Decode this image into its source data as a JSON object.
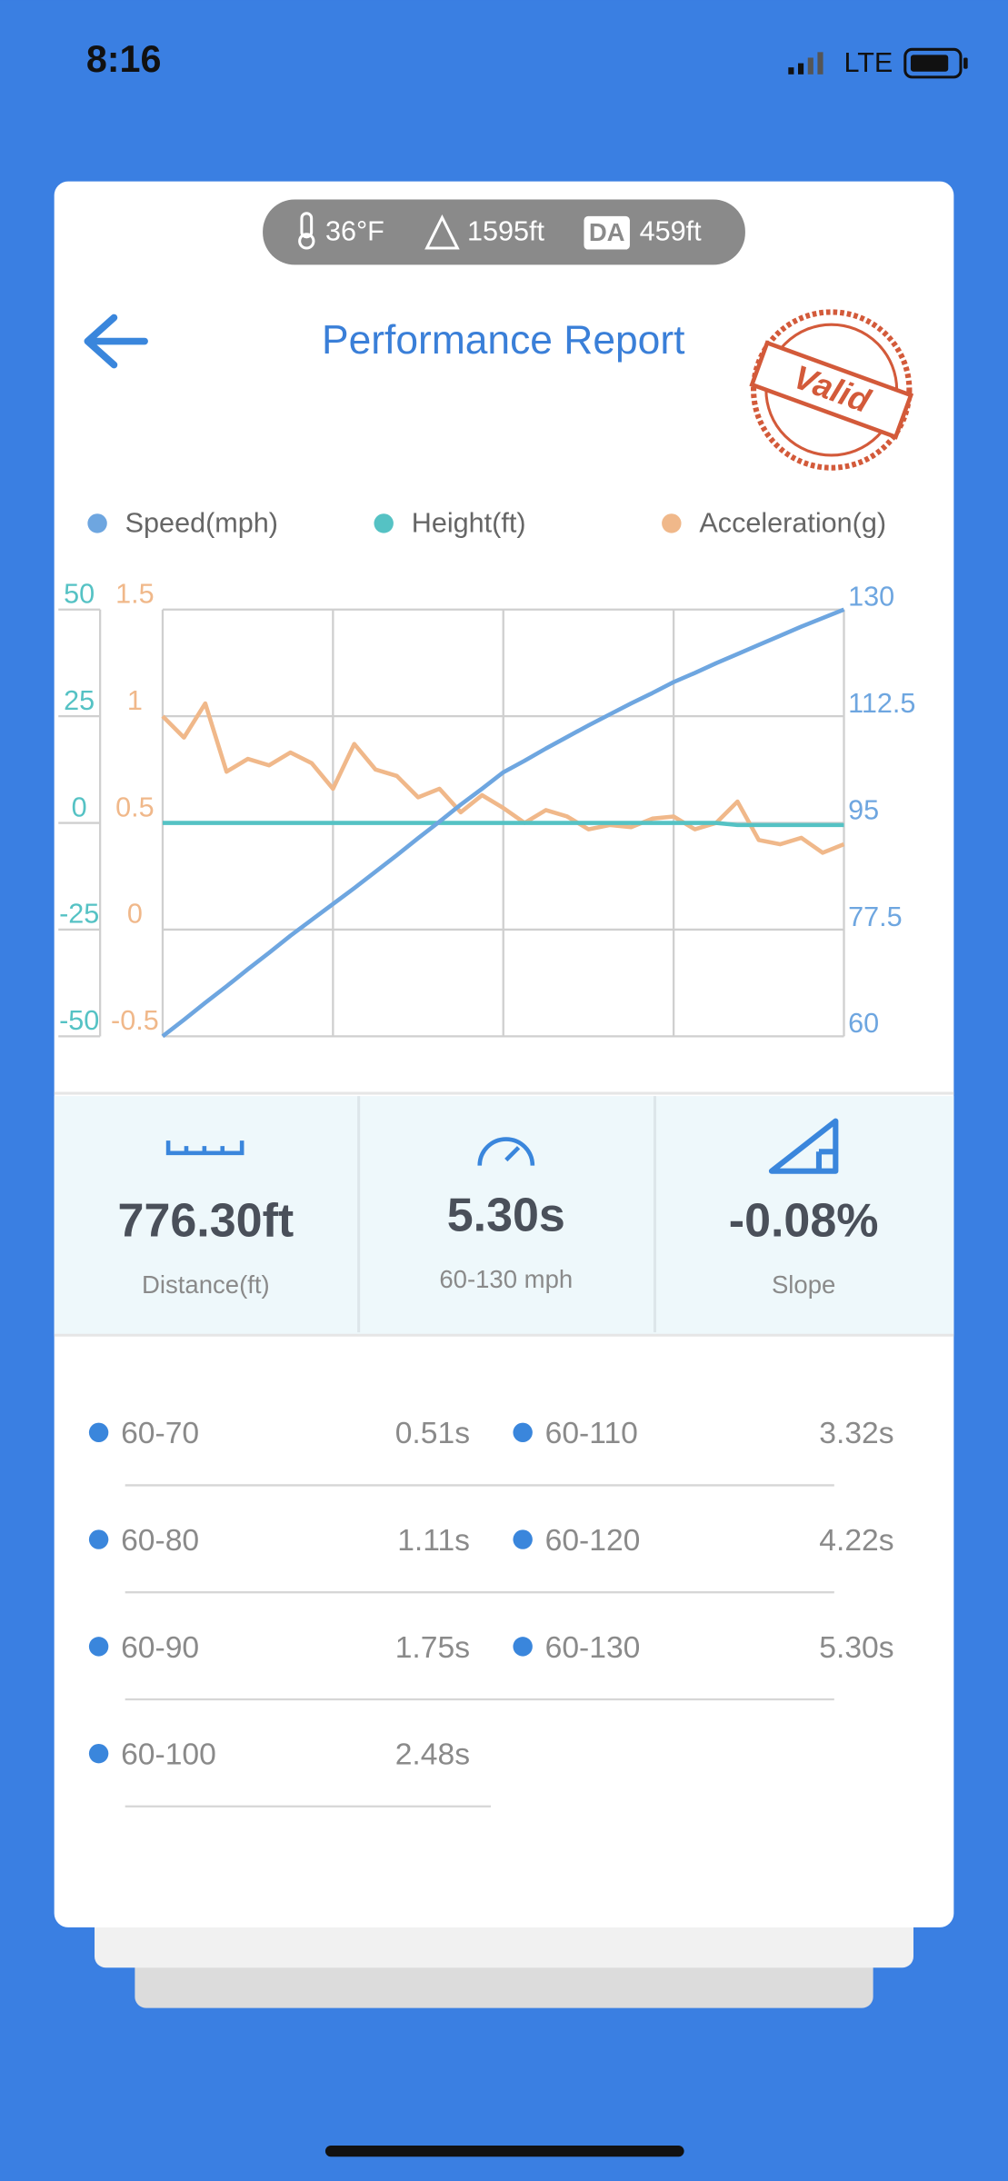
{
  "status_bar": {
    "time": "8:16",
    "network": "LTE"
  },
  "conditions": {
    "temperature": "36°F",
    "altitude": "1595ft",
    "density_altitude_badge": "DA",
    "density_altitude": "459ft"
  },
  "header": {
    "title": "Performance Report",
    "stamp": "Valid"
  },
  "chart_data": {
    "type": "line",
    "grid": true,
    "series": [
      {
        "name": "Speed(mph)",
        "color": "#6ea6e0",
        "axis": "y2",
        "values": [
          60,
          62.7,
          65.5,
          68.2,
          71,
          73.7,
          76.5,
          79.1,
          81.7,
          84.3,
          87,
          89.7,
          92.5,
          95.2,
          98,
          100.6,
          103.3,
          105.2,
          107.2,
          109.1,
          111,
          112.8,
          114.6,
          116.3,
          118.1,
          119.6,
          121.2,
          122.7,
          124.2,
          125.7,
          127.2,
          128.6,
          130
        ]
      },
      {
        "name": "Height(ft)",
        "color": "#55c2c4",
        "axis": "y",
        "values": [
          0,
          0,
          0,
          0,
          0,
          0,
          0,
          0,
          0,
          0,
          0,
          0,
          0,
          0,
          0,
          0,
          0,
          0,
          0,
          0,
          0,
          0,
          0,
          0,
          0,
          0,
          0,
          -0.5,
          -0.5,
          -0.5,
          -0.5,
          -0.5,
          -0.5
        ]
      },
      {
        "name": "Acceleration(g)",
        "color": "#f0b88a",
        "axis": "y3",
        "values": [
          1.0,
          0.9,
          1.06,
          0.74,
          0.8,
          0.77,
          0.83,
          0.78,
          0.66,
          0.87,
          0.75,
          0.72,
          0.62,
          0.66,
          0.55,
          0.63,
          0.57,
          0.5,
          0.56,
          0.53,
          0.47,
          0.49,
          0.48,
          0.52,
          0.53,
          0.47,
          0.5,
          0.6,
          0.42,
          0.4,
          0.43,
          0.36,
          0.4
        ]
      }
    ],
    "ylim": [
      -50,
      50
    ],
    "yticks": [
      -50,
      -25,
      0,
      25,
      50
    ],
    "y3lim": [
      -0.5,
      1.5
    ],
    "y3ticks": [
      -0.5,
      0,
      0.5,
      1,
      1.5
    ],
    "y2lim": [
      60,
      130
    ],
    "y2ticks": [
      60,
      77.5,
      95,
      112.5,
      130
    ]
  },
  "summary": [
    {
      "value": "776.30ft",
      "label": "Distance(ft)"
    },
    {
      "value": "5.30s",
      "label": "60-130 mph"
    },
    {
      "value": "-0.08%",
      "label": "Slope"
    }
  ],
  "splits": [
    {
      "range": "60-70",
      "time": "0.51s"
    },
    {
      "range": "60-80",
      "time": "1.11s"
    },
    {
      "range": "60-90",
      "time": "1.75s"
    },
    {
      "range": "60-100",
      "time": "2.48s"
    },
    {
      "range": "60-110",
      "time": "3.32s"
    },
    {
      "range": "60-120",
      "time": "4.22s"
    },
    {
      "range": "60-130",
      "time": "5.30s"
    }
  ]
}
